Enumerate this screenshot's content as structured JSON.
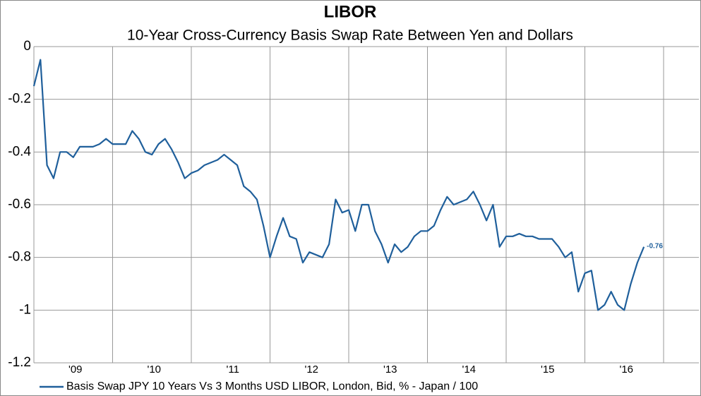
{
  "chart_data": {
    "type": "line",
    "title": "LIBOR",
    "subtitle": "10-Year Cross-Currency Basis Swap Rate Between Yen and Dollars",
    "categories": [
      null,
      null,
      null,
      null,
      null,
      null,
      "'09",
      null,
      null,
      null,
      null,
      null,
      null,
      null,
      null,
      null,
      null,
      null,
      "'10",
      null,
      null,
      null,
      null,
      null,
      null,
      null,
      null,
      null,
      null,
      null,
      "'11",
      null,
      null,
      null,
      null,
      null,
      null,
      null,
      null,
      null,
      null,
      null,
      "'12",
      null,
      null,
      null,
      null,
      null,
      null,
      null,
      null,
      null,
      null,
      null,
      "'13",
      null,
      null,
      null,
      null,
      null,
      null,
      null,
      null,
      null,
      null,
      null,
      "'14",
      null,
      null,
      null,
      null,
      null,
      null,
      null,
      null,
      null,
      null,
      null,
      "'15",
      null,
      null,
      null,
      null,
      null,
      null,
      null,
      null,
      null,
      null,
      null,
      "'16",
      null,
      null,
      null
    ],
    "series": [
      {
        "name": "Basis Swap JPY 10 Years Vs 3 Months USD LIBOR, London, Bid, % - Japan / 100",
        "color": "#1f5f9b",
        "values": [
          -0.15,
          -0.05,
          -0.45,
          -0.5,
          -0.4,
          -0.4,
          -0.42,
          -0.38,
          -0.38,
          -0.38,
          -0.37,
          -0.35,
          -0.37,
          -0.37,
          -0.37,
          -0.32,
          -0.35,
          -0.4,
          -0.41,
          -0.37,
          -0.35,
          -0.39,
          -0.44,
          -0.5,
          -0.48,
          -0.47,
          -0.45,
          -0.44,
          -0.43,
          -0.41,
          -0.43,
          -0.45,
          -0.53,
          -0.55,
          -0.58,
          -0.68,
          -0.8,
          -0.72,
          -0.65,
          -0.72,
          -0.73,
          -0.82,
          -0.78,
          -0.79,
          -0.8,
          -0.75,
          -0.58,
          -0.63,
          -0.62,
          -0.7,
          -0.6,
          -0.6,
          -0.7,
          -0.75,
          -0.82,
          -0.75,
          -0.78,
          -0.76,
          -0.72,
          -0.7,
          -0.7,
          -0.68,
          -0.62,
          -0.57,
          -0.6,
          -0.59,
          -0.58,
          -0.55,
          -0.6,
          -0.66,
          -0.6,
          -0.76,
          -0.72,
          -0.72,
          -0.71,
          -0.72,
          -0.72,
          -0.73,
          -0.73,
          -0.73,
          -0.76,
          -0.8,
          -0.78,
          -0.93,
          -0.86,
          -0.85,
          -1.0,
          -0.98,
          -0.93,
          -0.98,
          -1.0,
          -0.9,
          -0.82,
          -0.76
        ]
      }
    ],
    "ylim": [
      -1.2,
      0
    ],
    "yticks": [
      0,
      -0.2,
      -0.4,
      -0.6,
      -0.8,
      -1,
      -1.2
    ],
    "grid": true,
    "legend": "bottom"
  }
}
